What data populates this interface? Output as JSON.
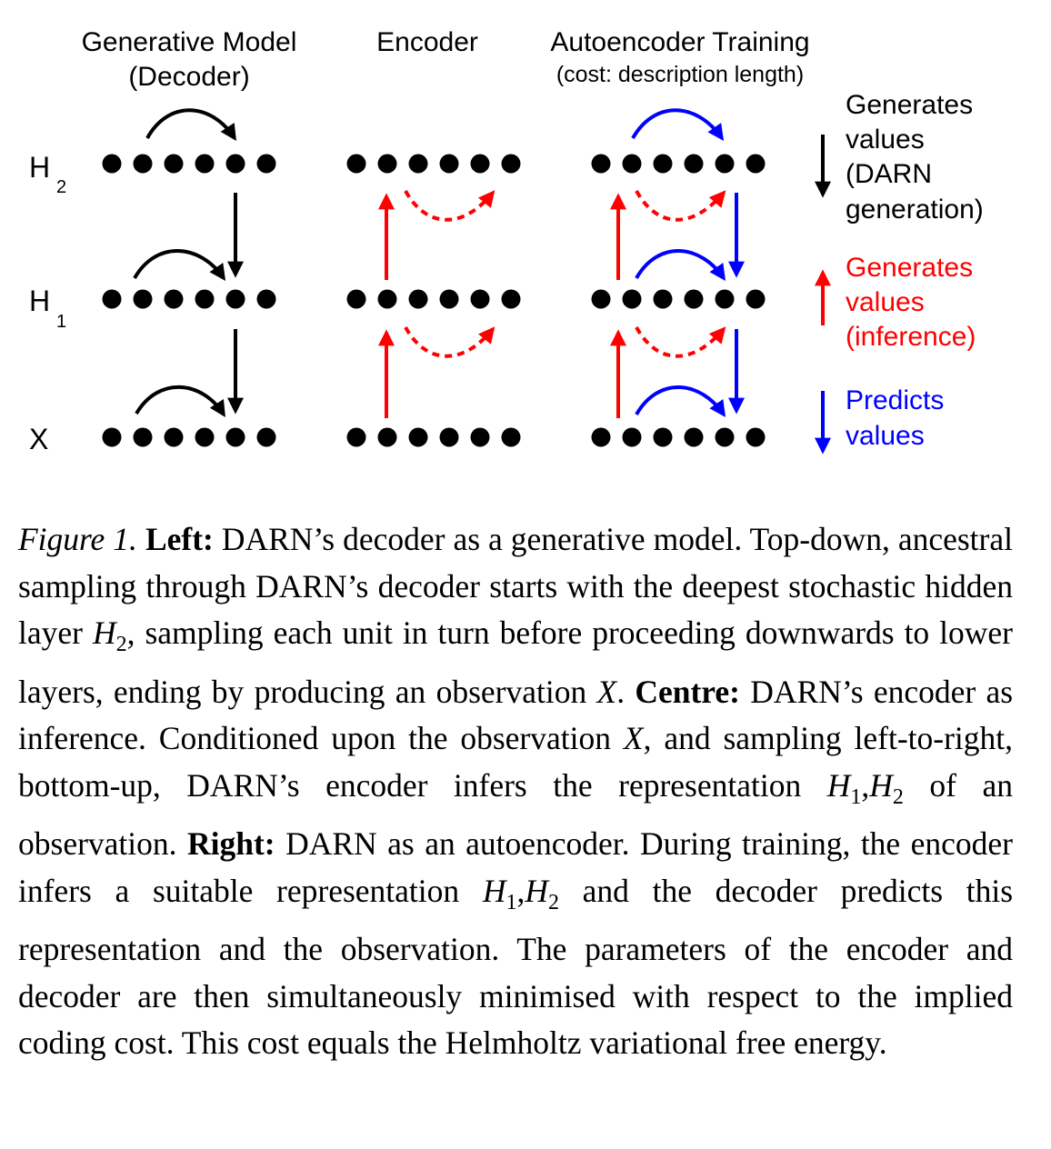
{
  "figure": {
    "columns": {
      "decoder_title": "Generative Model",
      "decoder_subtitle": "(Decoder)",
      "encoder_title": "Encoder",
      "autoencoder_title": "Autoencoder Training",
      "autoencoder_subtitle": "(cost: description length)"
    },
    "rows": {
      "h2": {
        "base": "H",
        "sub": "2"
      },
      "h1": {
        "base": "H",
        "sub": "1"
      },
      "x": {
        "base": "X",
        "sub": ""
      }
    },
    "units_per_layer": 6,
    "legend": [
      {
        "lines": [
          "Generates",
          "values",
          "(DARN",
          "generation)"
        ],
        "color": "#000000",
        "direction": "down"
      },
      {
        "lines": [
          "Generates",
          "values",
          "(inference)"
        ],
        "color": "#ff0000",
        "direction": "up"
      },
      {
        "lines": [
          "Predicts",
          "values"
        ],
        "color": "#0000ff",
        "direction": "down"
      }
    ],
    "colors": {
      "generation": "#000000",
      "inference": "#ff0000",
      "prediction": "#0000ff"
    }
  },
  "caption": {
    "label": "Figure 1.",
    "left_head": "Left:",
    "left_text_1": "DARN’s decoder as a generative model. Top-down, ancestral sampling through DARN’s decoder starts with the deepest stochastic hidden layer",
    "m_H": "H",
    "m_2": "2",
    "left_text_2": ", sampling each unit in turn before proceeding downwards to lower layers, ending by producing an observation",
    "m_X": "X",
    "left_text_3": ".",
    "centre_head": "Centre:",
    "centre_text_1": "DARN’s encoder as inference. Conditioned upon the observation",
    "centre_text_2": ", and sampling left-to-right, bottom-up, DARN’s encoder infers the representation",
    "m_H1": "H",
    "m_1": "1",
    "m_comma": ",",
    "centre_text_3": "of an observation.",
    "right_head": "Right:",
    "right_text_1": "DARN as an autoencoder. During training, the encoder infers a suitable representation",
    "right_text_2": "and the decoder predicts this representation and the observation. The parameters of the encoder and decoder are then simultaneously minimised with respect to the implied coding cost. This cost equals the Helmholtz variational free energy."
  }
}
